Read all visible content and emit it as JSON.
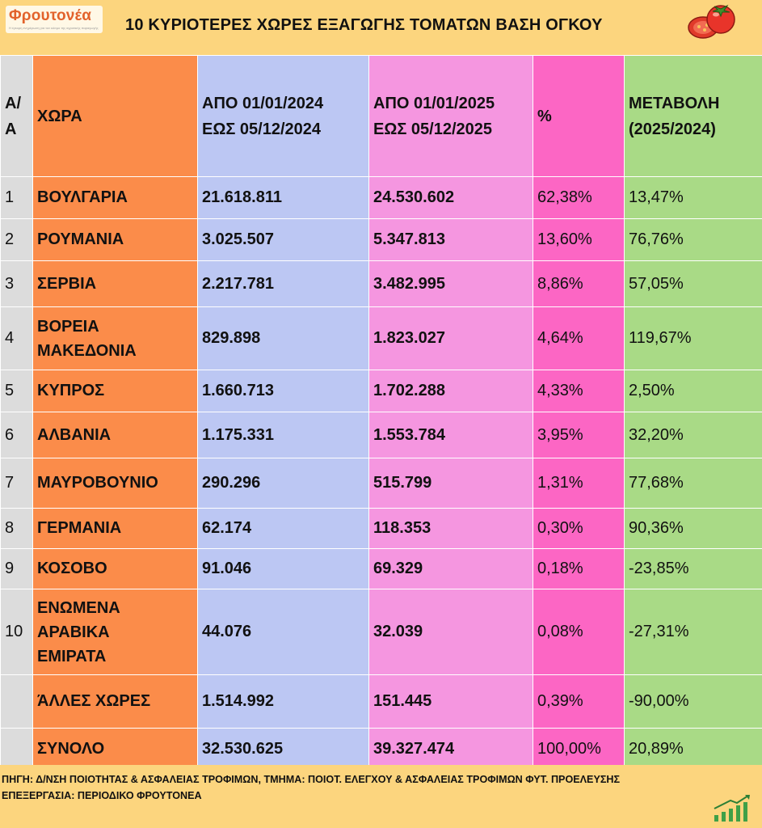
{
  "header": {
    "logo_name": "Φρουτονέα",
    "logo_tagline": "Η έγκυρη ενημέρωση για τον κόσμο της αγροτικής παραγωγής",
    "title": "10 ΚΥΡΙΟΤΕΡΕΣ ΧΩΡΕΣ ΕΞΑΓΩΓΗΣ ΤΟΜΑΤΩΝ ΒΑΣΗ ΟΓΚΟΥ"
  },
  "table": {
    "headers": {
      "aa": [
        "Α/",
        "Α"
      ],
      "country": "ΧΩΡΑ",
      "y2024": [
        "ΑΠΟ 01/01/2024",
        "ΕΩΣ 05/12/2024"
      ],
      "y2025": [
        "ΑΠΟ 01/01/2025",
        "ΕΩΣ 05/12/2025"
      ],
      "pct": "%",
      "change": [
        "ΜΕΤΑΒΟΛΗ",
        "(2025/2024)"
      ]
    },
    "rows": [
      {
        "aa": "1",
        "country": [
          "ΒΟΥΛΓΑΡΙΑ"
        ],
        "y2024": "21.618.811",
        "y2025": "24.530.602",
        "pct": "62,38%",
        "change": "13,47%"
      },
      {
        "aa": "2",
        "country": [
          "ΡΟΥΜΑΝΙΑ"
        ],
        "y2024": "3.025.507",
        "y2025": "5.347.813",
        "pct": "13,60%",
        "change": "76,76%"
      },
      {
        "aa": "3",
        "country": [
          "ΣΕΡΒΙΑ"
        ],
        "y2024": "2.217.781",
        "y2025": "3.482.995",
        "pct": "8,86%",
        "change": "57,05%"
      },
      {
        "aa": "4",
        "country": [
          "ΒΟΡΕΙΑ",
          "ΜΑΚΕΔΟΝΙΑ"
        ],
        "y2024": "829.898",
        "y2025": "1.823.027",
        "pct": "4,64%",
        "change": "119,67%"
      },
      {
        "aa": "5",
        "country": [
          "ΚΥΠΡΟΣ"
        ],
        "y2024": "1.660.713",
        "y2025": "1.702.288",
        "pct": "4,33%",
        "change": "2,50%"
      },
      {
        "aa": "6",
        "country": [
          "ΑΛΒΑΝΙΑ"
        ],
        "y2024": "1.175.331",
        "y2025": "1.553.784",
        "pct": "3,95%",
        "change": "32,20%"
      },
      {
        "aa": "7",
        "country": [
          "ΜΑΥΡΟΒΟΥΝΙΟ"
        ],
        "y2024": "290.296",
        "y2025": "515.799",
        "pct": "1,31%",
        "change": "77,68%"
      },
      {
        "aa": "8",
        "country": [
          "ΓΕΡΜΑΝΙΑ"
        ],
        "y2024": "62.174",
        "y2025": "118.353",
        "pct": "0,30%",
        "change": "90,36%"
      },
      {
        "aa": "9",
        "country": [
          "ΚΟΣΟΒΟ"
        ],
        "y2024": "91.046",
        "y2025": "69.329",
        "pct": "0,18%",
        "change": "-23,85%"
      },
      {
        "aa": "10",
        "country": [
          "ΕΝΩΜΕΝΑ",
          "ΑΡΑΒΙΚΑ",
          "ΕΜΙΡΑΤΑ"
        ],
        "y2024": "44.076",
        "y2025": "32.039",
        "pct": "0,08%",
        "change": "-27,31%"
      },
      {
        "aa": "",
        "country": [
          "ΆΛΛΕΣ ΧΩΡΕΣ"
        ],
        "y2024": "1.514.992",
        "y2025": "151.445",
        "pct": "0,39%",
        "change": "-90,00%"
      },
      {
        "aa": "",
        "country": [
          "ΣΥΝΟΛΟ"
        ],
        "y2024": "32.530.625",
        "y2025": "39.327.474",
        "pct": "100,00%",
        "change": "20,89%"
      }
    ]
  },
  "footer": {
    "source": "ΠΗΓΗ: Δ/ΝΣΗ ΠΟΙΟΤΗΤΑΣ & ΑΣΦΑΛΕΙΑΣ ΤΡΟΦΙΜΩΝ, ΤΜΗΜΑ: ΠΟΙΟΤ. ΕΛΕΓΧΟΥ & ΑΣΦΑΛΕΙΑΣ ΤΡΟΦΙΜΩΝ ΦΥΤ. ΠΡΟΕΛΕΥΣΗΣ",
    "processing": "ΕΠΕΞΕΡΓΑΣΙΑ: ΠΕΡΙΟΔΙΚΟ ΦΡΟΥΤΟΝΕΑ"
  },
  "icons": {
    "logo": "frutonea-logo",
    "decoration": "tomato-icon",
    "footer": "bar-growth-icon"
  },
  "colors": {
    "background": "#fcd57e",
    "aa_column": "#dcdcdc",
    "country_column": "#fb8c4a",
    "y2024_column": "#bcc7f3",
    "y2025_column": "#f596e0",
    "pct_column": "#fc66c4",
    "change_column": "#a9da86"
  }
}
